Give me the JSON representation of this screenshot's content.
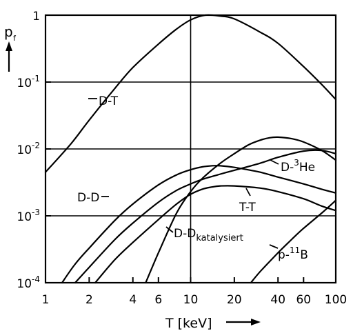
{
  "chart_data": {
    "type": "line",
    "y_axis_label": "p",
    "y_axis_label_sub": "f",
    "x_axis_label": "T [keV]",
    "x_scale": "log",
    "y_scale": "log",
    "xlim": [
      1,
      100
    ],
    "ylim": [
      0.0001,
      1
    ],
    "x_ticks": [
      {
        "value": 1,
        "label": "1"
      },
      {
        "value": 2,
        "label": "2"
      },
      {
        "value": 4,
        "label": "4"
      },
      {
        "value": 6,
        "label": "6"
      },
      {
        "value": 10,
        "label": "10"
      },
      {
        "value": 20,
        "label": "20"
      },
      {
        "value": 40,
        "label": "40"
      },
      {
        "value": 60,
        "label": "60"
      },
      {
        "value": 100,
        "label": "100"
      }
    ],
    "y_ticks": [
      {
        "value": 0.0001,
        "base": "10",
        "exp": "-4"
      },
      {
        "value": 0.001,
        "base": "10",
        "exp": "-3"
      },
      {
        "value": 0.01,
        "base": "10",
        "exp": "-2"
      },
      {
        "value": 0.1,
        "base": "10",
        "exp": "-1"
      },
      {
        "value": 1,
        "base": "1",
        "exp": ""
      }
    ],
    "gridlines": {
      "y": [
        0.001,
        0.01,
        0.1
      ],
      "x": [
        10
      ]
    },
    "series": [
      {
        "name": "D-T",
        "x": [
          1,
          1.5,
          2,
          3,
          4,
          6,
          8,
          10,
          12.6,
          16,
          20,
          30,
          40,
          60,
          80,
          100
        ],
        "y": [
          0.0045,
          0.012,
          0.027,
          0.08,
          0.165,
          0.37,
          0.62,
          0.85,
          1.0,
          0.97,
          0.88,
          0.56,
          0.38,
          0.17,
          0.092,
          0.055
        ]
      },
      {
        "name": "D-D",
        "x": [
          1.3,
          1.6,
          2,
          3,
          4,
          6,
          8,
          10,
          12,
          14,
          16,
          20,
          30,
          40,
          60,
          80,
          100
        ],
        "y": [
          0.0001,
          0.00019,
          0.00033,
          0.00085,
          0.0015,
          0.0029,
          0.0041,
          0.0049,
          0.0054,
          0.0056,
          0.0056,
          0.0053,
          0.0045,
          0.0038,
          0.003,
          0.0025,
          0.0022
        ]
      },
      {
        "name": "D-Dkatalysiert",
        "x": [
          1.6,
          2,
          3,
          4,
          6,
          8,
          10,
          12,
          16,
          20,
          30,
          40,
          60,
          80,
          100
        ],
        "y": [
          0.0001,
          0.00017,
          0.00044,
          0.00078,
          0.0016,
          0.0024,
          0.003,
          0.0035,
          0.0042,
          0.0048,
          0.0061,
          0.0075,
          0.0093,
          0.0095,
          0.0085
        ]
      },
      {
        "name": "T-T",
        "x": [
          2.2,
          3,
          4,
          6,
          8,
          10,
          12,
          14,
          16,
          20,
          30,
          40,
          60,
          80,
          100
        ],
        "y": [
          0.0001,
          0.00022,
          0.0004,
          0.00088,
          0.0015,
          0.0021,
          0.0025,
          0.0027,
          0.0028,
          0.0028,
          0.0026,
          0.0023,
          0.0018,
          0.0014,
          0.0012
        ]
      },
      {
        "name": "D-3He",
        "x": [
          4.9,
          6,
          8,
          10,
          12,
          16,
          20,
          25,
          30,
          35,
          40,
          50,
          60,
          80,
          100
        ],
        "y": [
          0.0001,
          0.00028,
          0.0011,
          0.0023,
          0.0036,
          0.0061,
          0.0085,
          0.0115,
          0.0135,
          0.0147,
          0.015,
          0.0142,
          0.0127,
          0.0095,
          0.0068
        ]
      },
      {
        "name": "p-11B",
        "x": [
          26,
          30,
          40,
          50,
          60,
          80,
          100
        ],
        "y": [
          0.0001,
          0.000145,
          0.00028,
          0.00045,
          0.00065,
          0.0011,
          0.0017
        ]
      }
    ],
    "annotations": [
      {
        "id": "dt",
        "parts": [
          "D-T"
        ]
      },
      {
        "id": "dd",
        "parts": [
          "D-D"
        ]
      },
      {
        "id": "dhe3",
        "parts": [
          "D-",
          "3",
          "He"
        ]
      },
      {
        "id": "tt",
        "parts": [
          "T-T"
        ]
      },
      {
        "id": "ddk",
        "parts": [
          "D-D",
          "katalysiert"
        ]
      },
      {
        "id": "pb",
        "parts": [
          "p-",
          "11",
          "B"
        ]
      }
    ]
  }
}
